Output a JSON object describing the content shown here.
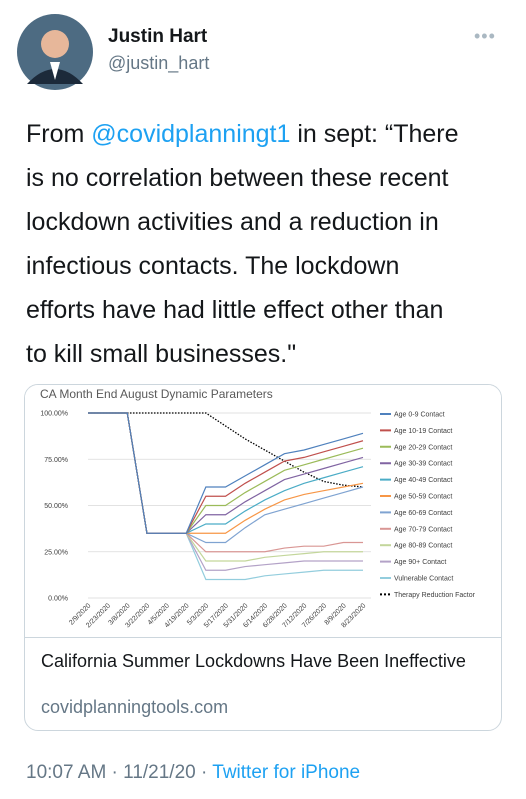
{
  "header": {
    "name": "Justin Hart",
    "handle": "@justin_hart"
  },
  "tweet": {
    "first_line": {
      "prefix": "From ",
      "mention": "@covidplanningt1",
      "suffix": " in sept: “There"
    },
    "lines": [
      "is no correlation between these recent",
      "lockdown activities and a reduction in",
      "infectious contacts.  The lockdown",
      "efforts have had little effect other than",
      "to kill small businesses.\""
    ]
  },
  "chart_data": {
    "type": "line",
    "title": "CA Month End August Dynamic Parameters",
    "categories": [
      "2/9/2020",
      "2/23/2020",
      "3/8/2020",
      "3/22/2020",
      "4/5/2020",
      "4/19/2020",
      "5/3/2020",
      "5/17/2020",
      "5/31/2020",
      "6/14/2020",
      "6/28/2020",
      "7/12/2020",
      "7/26/2020",
      "8/9/2020",
      "8/23/2020"
    ],
    "ylim": [
      0,
      100
    ],
    "yticks": [
      {
        "value": 0,
        "label": "0.00%"
      },
      {
        "value": 25,
        "label": "25.00%"
      },
      {
        "value": 50,
        "label": "50.00%"
      },
      {
        "value": 75,
        "label": "75.00%"
      },
      {
        "value": 100,
        "label": "100.00%"
      }
    ],
    "grid": true,
    "legend": "right",
    "series": [
      {
        "name": "Age 0-9 Contact",
        "color": "#4f81bd",
        "values": [
          100,
          100,
          100,
          35,
          35,
          35,
          60,
          60,
          66,
          72,
          78,
          80,
          83,
          86,
          89
        ]
      },
      {
        "name": "Age 10-19 Contact",
        "color": "#c0504d",
        "values": [
          100,
          100,
          100,
          35,
          35,
          35,
          55,
          55,
          62,
          68,
          74,
          76,
          79,
          82,
          85
        ]
      },
      {
        "name": "Age 20-29 Contact",
        "color": "#9bbb59",
        "values": [
          100,
          100,
          100,
          35,
          35,
          35,
          50,
          50,
          57,
          63,
          69,
          72,
          75,
          78,
          81
        ]
      },
      {
        "name": "Age 30-39 Contact",
        "color": "#8064a2",
        "values": [
          100,
          100,
          100,
          35,
          35,
          35,
          45,
          45,
          52,
          58,
          64,
          67,
          70,
          73,
          76
        ]
      },
      {
        "name": "Age 40-49 Contact",
        "color": "#4bacc6",
        "values": [
          100,
          100,
          100,
          35,
          35,
          35,
          40,
          40,
          47,
          53,
          58,
          62,
          65,
          68,
          71
        ]
      },
      {
        "name": "Age 50-59 Contact",
        "color": "#f79646",
        "values": [
          100,
          100,
          100,
          35,
          35,
          35,
          35,
          35,
          42,
          48,
          53,
          56,
          58,
          60,
          62
        ]
      },
      {
        "name": "Age 60-69 Contact",
        "color": "#7fa3d1",
        "values": [
          100,
          100,
          100,
          35,
          35,
          35,
          30,
          30,
          38,
          45,
          48,
          51,
          54,
          57,
          60
        ]
      },
      {
        "name": "Age 70-79 Contact",
        "color": "#d99694",
        "values": [
          100,
          100,
          100,
          35,
          35,
          35,
          25,
          25,
          25,
          25,
          27,
          28,
          28,
          30,
          30
        ]
      },
      {
        "name": "Age 80-89 Contact",
        "color": "#c3d69b",
        "values": [
          100,
          100,
          100,
          35,
          35,
          35,
          20,
          20,
          20,
          22,
          23,
          24,
          25,
          25,
          25
        ]
      },
      {
        "name": "Age 90+ Contact",
        "color": "#b3a2c7",
        "values": [
          100,
          100,
          100,
          35,
          35,
          35,
          15,
          15,
          17,
          18,
          19,
          20,
          20,
          20,
          20
        ]
      },
      {
        "name": "Vulnerable Contact",
        "color": "#93cddd",
        "values": [
          100,
          100,
          100,
          35,
          35,
          35,
          10,
          10,
          10,
          12,
          13,
          14,
          15,
          15,
          15
        ]
      },
      {
        "name": "Therapy Reduction Factor",
        "color": "#000000",
        "dash": true,
        "values": [
          100,
          100,
          100,
          100,
          100,
          100,
          100,
          93,
          86,
          80,
          74,
          68,
          63,
          61,
          60
        ]
      }
    ]
  },
  "card": {
    "title": "California Summer Lockdowns Have Been Ineffective",
    "domain": "covidplanningtools.com"
  },
  "footer": {
    "time": "10:07 AM",
    "separator": " · ",
    "date": "11/21/20",
    "source": "Twitter for iPhone"
  }
}
